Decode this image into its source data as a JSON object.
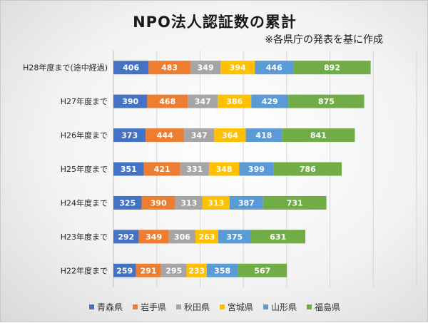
{
  "title": "NPO法人認証数の累計",
  "subtitle": "※各県庁の発表を基に作成",
  "chart_data": {
    "type": "bar",
    "orientation": "horizontal",
    "stacked": true,
    "title": "NPO法人認証数の累計",
    "categories": [
      "H28年度まで(途中経過)",
      "H27年度まで",
      "H26年度まで",
      "H25年度まで",
      "H24年度まで",
      "H23年度まで",
      "H22年度まで"
    ],
    "series": [
      {
        "name": "青森県",
        "color": "#4472c4",
        "values": [
          406,
          390,
          373,
          351,
          325,
          292,
          259
        ]
      },
      {
        "name": "岩手県",
        "color": "#ed7d31",
        "values": [
          483,
          468,
          444,
          421,
          390,
          349,
          291
        ]
      },
      {
        "name": "秋田県",
        "color": "#a5a5a5",
        "values": [
          349,
          347,
          347,
          331,
          313,
          306,
          295
        ]
      },
      {
        "name": "宮城県",
        "color": "#ffc000",
        "values": [
          394,
          386,
          364,
          348,
          313,
          263,
          233
        ]
      },
      {
        "name": "山形県",
        "color": "#5b9bd5",
        "values": [
          446,
          429,
          418,
          399,
          387,
          375,
          358
        ]
      },
      {
        "name": "福島県",
        "color": "#70ad47",
        "values": [
          892,
          875,
          841,
          786,
          731,
          631,
          567
        ]
      }
    ],
    "xlim": [
      0,
      3500
    ],
    "grid_step": 500,
    "grid": true,
    "legend_position": "bottom"
  }
}
